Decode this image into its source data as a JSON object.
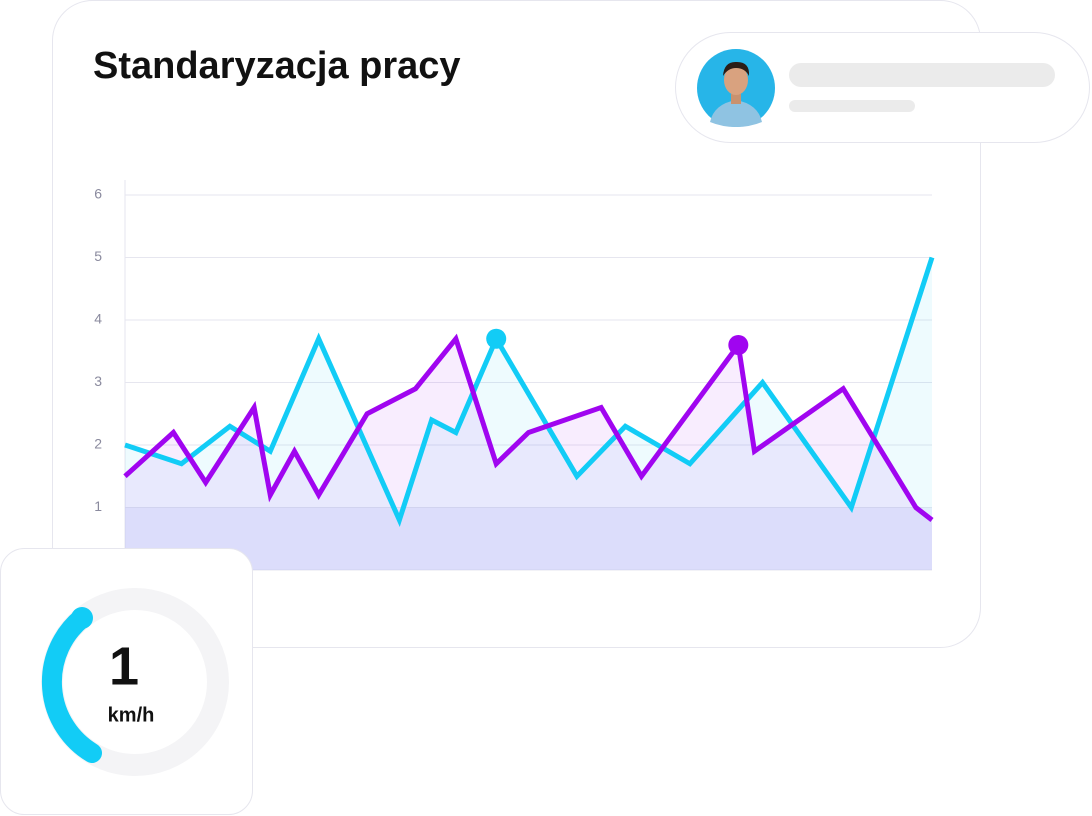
{
  "chart_data": {
    "type": "line",
    "title": "Standaryzacja pracy",
    "xlim": [
      0,
      100
    ],
    "ylim": [
      0,
      6
    ],
    "yticks": [
      1,
      2,
      3,
      4,
      5,
      6
    ],
    "grid": true,
    "area": true,
    "series": [
      {
        "color": "#12ccf6",
        "highlight": 8,
        "x": [
          0,
          7,
          13,
          18,
          24,
          34,
          38,
          41,
          46,
          56,
          62,
          70,
          79,
          90,
          100
        ],
        "values": [
          2.0,
          1.7,
          2.3,
          1.9,
          3.7,
          0.8,
          2.4,
          2.2,
          3.7,
          1.5,
          2.3,
          1.7,
          3.0,
          1.0,
          5.0
        ]
      },
      {
        "color": "#a005f0",
        "highlight": 14,
        "x": [
          0,
          6,
          10,
          16,
          18,
          21,
          24,
          30,
          36,
          41,
          46,
          50,
          59,
          64,
          76,
          78,
          89,
          98,
          100
        ],
        "values": [
          1.5,
          2.2,
          1.4,
          2.6,
          1.2,
          1.9,
          1.2,
          2.5,
          2.9,
          3.7,
          1.7,
          2.2,
          2.6,
          1.5,
          3.6,
          1.9,
          2.9,
          1.0,
          0.8
        ]
      }
    ]
  },
  "gauge": {
    "value": "1",
    "unit": "km/h"
  }
}
